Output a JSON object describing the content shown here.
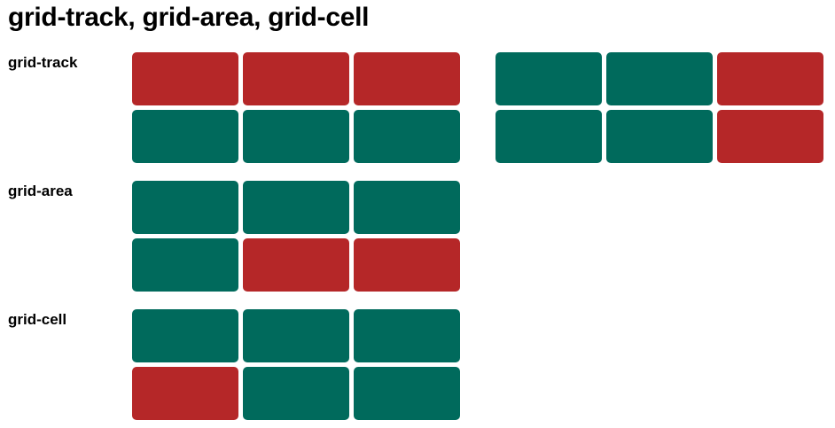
{
  "title": "grid-track, grid-area, grid-cell",
  "colors": {
    "red": "#b52728",
    "green": "#006a5c"
  },
  "sections": [
    {
      "label": "grid-track",
      "grids": [
        {
          "rows": [
            [
              "red",
              "red",
              "red"
            ],
            [
              "green",
              "green",
              "green"
            ]
          ]
        },
        {
          "rows": [
            [
              "green",
              "green",
              "red"
            ],
            [
              "green",
              "green",
              "red"
            ]
          ]
        }
      ]
    },
    {
      "label": "grid-area",
      "grids": [
        {
          "rows": [
            [
              "green",
              "green",
              "green"
            ],
            [
              "green",
              "red",
              "red"
            ]
          ]
        }
      ]
    },
    {
      "label": "grid-cell",
      "grids": [
        {
          "rows": [
            [
              "green",
              "green",
              "green"
            ],
            [
              "red",
              "green",
              "green"
            ]
          ]
        }
      ]
    }
  ]
}
